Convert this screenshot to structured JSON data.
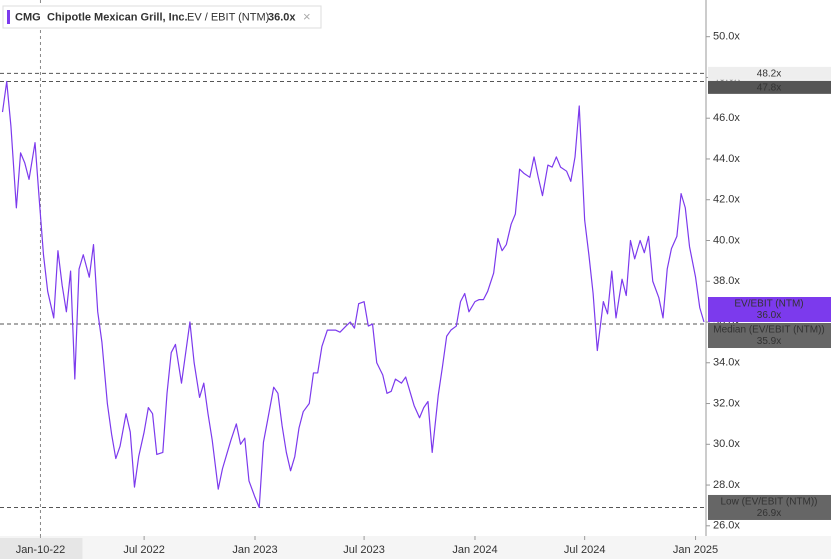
{
  "chart_data": {
    "type": "line",
    "legend": {
      "ticker": "CMG",
      "company": "Chipotle Mexican Grill, Inc.",
      "metric": "EV / EBIT (NTM)",
      "value_label": "36.0x",
      "close": "×"
    },
    "x": [
      "2021-11-08",
      "2021-11-15",
      "2021-11-22",
      "2021-12-01",
      "2021-12-08",
      "2021-12-15",
      "2021-12-22",
      "2022-01-01",
      "2022-01-08",
      "2022-01-15",
      "2022-01-22",
      "2022-02-01",
      "2022-02-08",
      "2022-02-15",
      "2022-02-22",
      "2022-03-01",
      "2022-03-08",
      "2022-03-15",
      "2022-03-22",
      "2022-04-01",
      "2022-04-08",
      "2022-04-15",
      "2022-04-22",
      "2022-05-01",
      "2022-05-08",
      "2022-05-15",
      "2022-05-22",
      "2022-06-01",
      "2022-06-08",
      "2022-06-15",
      "2022-06-22",
      "2022-07-01",
      "2022-07-08",
      "2022-07-15",
      "2022-07-22",
      "2022-08-01",
      "2022-08-08",
      "2022-08-15",
      "2022-08-22",
      "2022-09-01",
      "2022-09-08",
      "2022-09-15",
      "2022-09-22",
      "2022-10-01",
      "2022-10-08",
      "2022-10-15",
      "2022-10-22",
      "2022-11-01",
      "2022-11-08",
      "2022-11-15",
      "2022-11-22",
      "2022-12-01",
      "2022-12-08",
      "2022-12-15",
      "2022-12-22",
      "2023-01-01",
      "2023-01-08",
      "2023-01-15",
      "2023-01-22",
      "2023-02-01",
      "2023-02-08",
      "2023-02-15",
      "2023-02-22",
      "2023-03-01",
      "2023-03-08",
      "2023-03-15",
      "2023-03-22",
      "2023-04-01",
      "2023-04-08",
      "2023-04-15",
      "2023-04-22",
      "2023-05-01",
      "2023-05-08",
      "2023-05-15",
      "2023-05-22",
      "2023-06-01",
      "2023-06-08",
      "2023-06-15",
      "2023-06-22",
      "2023-07-01",
      "2023-07-08",
      "2023-07-15",
      "2023-07-22",
      "2023-08-01",
      "2023-08-08",
      "2023-08-15",
      "2023-08-22",
      "2023-09-01",
      "2023-09-08",
      "2023-09-15",
      "2023-09-22",
      "2023-10-01",
      "2023-10-08",
      "2023-10-15",
      "2023-10-22",
      "2023-11-01",
      "2023-11-08",
      "2023-11-15",
      "2023-11-22",
      "2023-12-01",
      "2023-12-08",
      "2023-12-15",
      "2023-12-22",
      "2024-01-01",
      "2024-01-08",
      "2024-01-15",
      "2024-01-22",
      "2024-02-01",
      "2024-02-08",
      "2024-02-15",
      "2024-02-22",
      "2024-03-01",
      "2024-03-08",
      "2024-03-15",
      "2024-03-22",
      "2024-04-01",
      "2024-04-08",
      "2024-04-15",
      "2024-04-22",
      "2024-05-01",
      "2024-05-08",
      "2024-05-15",
      "2024-05-22",
      "2024-06-01",
      "2024-06-08",
      "2024-06-15",
      "2024-06-22",
      "2024-07-01",
      "2024-07-08",
      "2024-07-15",
      "2024-07-22",
      "2024-08-01",
      "2024-08-08",
      "2024-08-15",
      "2024-08-22",
      "2024-09-01",
      "2024-09-08",
      "2024-09-15",
      "2024-09-22",
      "2024-10-01",
      "2024-10-08",
      "2024-10-15",
      "2024-10-22",
      "2024-11-01",
      "2024-11-08",
      "2024-11-15",
      "2024-11-22",
      "2024-12-01",
      "2024-12-08",
      "2024-12-15",
      "2024-12-22",
      "2025-01-01",
      "2025-01-08",
      "2025-01-15"
    ],
    "series": [
      {
        "name": "EV / EBIT (NTM)",
        "color": "#7c3aed",
        "values": [
          46.3,
          47.8,
          45.6,
          41.6,
          44.3,
          43.8,
          43.0,
          44.8,
          42.0,
          39.3,
          37.5,
          36.2,
          39.5,
          37.8,
          36.5,
          38.5,
          33.2,
          38.6,
          39.3,
          38.2,
          39.8,
          36.5,
          35.0,
          32.0,
          30.5,
          29.3,
          29.9,
          31.5,
          30.6,
          27.9,
          29.4,
          30.6,
          31.8,
          31.5,
          29.5,
          29.6,
          32.5,
          34.5,
          34.9,
          33.0,
          34.5,
          36.0,
          34.0,
          32.3,
          33.0,
          31.5,
          30.2,
          27.8,
          28.8,
          29.5,
          30.2,
          31.0,
          30.0,
          30.3,
          28.2,
          27.4,
          26.9,
          30.1,
          31.2,
          32.8,
          32.5,
          30.9,
          29.6,
          28.7,
          29.4,
          30.8,
          31.6,
          32.0,
          33.5,
          33.5,
          34.8,
          35.6,
          35.6,
          35.6,
          35.5,
          35.8,
          36.0,
          35.7,
          36.9,
          37.0,
          35.8,
          35.9,
          34.0,
          33.4,
          32.5,
          32.6,
          33.2,
          33.0,
          33.3,
          32.6,
          31.9,
          31.3,
          31.8,
          32.1,
          29.6,
          32.4,
          33.8,
          35.3,
          35.6,
          35.8,
          37.0,
          37.4,
          36.5,
          37.0,
          37.1,
          37.1,
          37.5,
          38.4,
          40.1,
          39.5,
          39.8,
          40.8,
          41.3,
          43.5,
          43.3,
          43.1,
          44.1,
          43.1,
          42.2,
          43.7,
          43.6,
          44.1,
          43.6,
          43.4,
          42.9,
          44.1,
          46.6,
          41.0,
          39.3,
          37.4,
          34.6,
          37.0,
          36.4,
          38.5,
          36.2,
          38.1,
          37.3,
          40.0,
          39.1,
          40.0,
          39.4,
          40.2,
          38.0,
          37.2,
          36.2,
          38.6,
          39.6,
          40.2,
          42.3,
          41.6,
          39.7,
          38.2,
          36.7,
          36.0
        ]
      }
    ],
    "xlim": [
      "2021-11-08",
      "2025-01-20"
    ],
    "xticks": [
      {
        "value": "2022-01-10",
        "label": "Jan-10-22"
      },
      {
        "value": "2022-07-01",
        "label": "Jul 2022"
      },
      {
        "value": "2023-01-01",
        "label": "Jan 2023"
      },
      {
        "value": "2023-07-01",
        "label": "Jul 2023"
      },
      {
        "value": "2024-01-01",
        "label": "Jan 2024"
      },
      {
        "value": "2024-07-01",
        "label": "Jul 2024"
      },
      {
        "value": "2025-01-01",
        "label": "Jan 2025"
      }
    ],
    "ylim": [
      25.5,
      51.8
    ],
    "yticks": [
      {
        "value": 26,
        "label": "26.0x"
      },
      {
        "value": 28,
        "label": "28.0x"
      },
      {
        "value": 30,
        "label": "30.0x"
      },
      {
        "value": 32,
        "label": "32.0x"
      },
      {
        "value": 34,
        "label": "34.0x"
      },
      {
        "value": 36,
        "label": "36.0x"
      },
      {
        "value": 38,
        "label": "38.0x"
      },
      {
        "value": 40,
        "label": "40.0x"
      },
      {
        "value": 42,
        "label": "42.0x"
      },
      {
        "value": 44,
        "label": "44.0x"
      },
      {
        "value": 46,
        "label": "46.0x"
      },
      {
        "value": 48,
        "label": "48.0x"
      },
      {
        "value": 50,
        "label": "50.0x"
      }
    ],
    "markers": [
      {
        "value": 48.2,
        "label": "48.2x",
        "style": "light",
        "dashed": true
      },
      {
        "value": 47.8,
        "label": "47.8x",
        "style": "dark",
        "dashed": true
      },
      {
        "name": "EV/EBIT (NTM)",
        "value": 36.0,
        "label": "36.0x",
        "style": "series",
        "dashed": false
      },
      {
        "name": "Median (EV/EBIT (NTM))",
        "value": 35.9,
        "label": "35.9x",
        "style": "gray",
        "dashed": true
      },
      {
        "name": "Low (EV/EBIT (NTM))",
        "value": 26.9,
        "label": "26.9x",
        "style": "gray",
        "dashed": true
      }
    ]
  }
}
